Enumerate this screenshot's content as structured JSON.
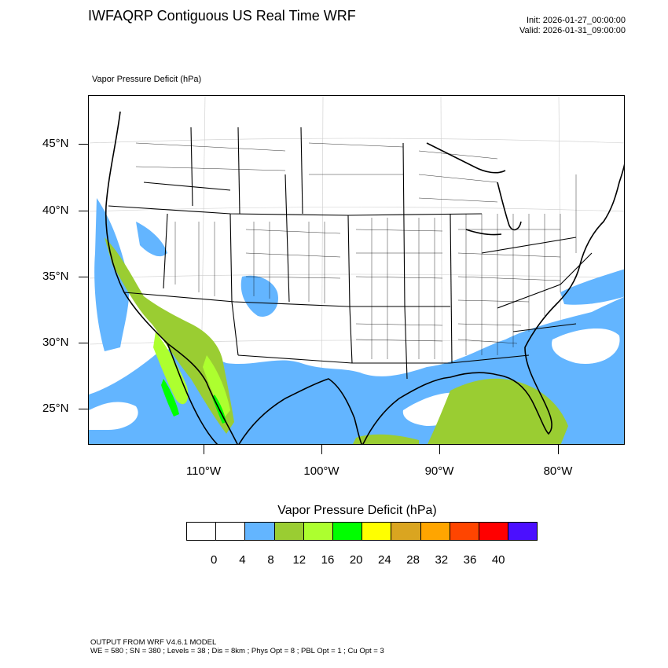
{
  "header": {
    "title": "IWFAQRP Contiguous US Real Time WRF",
    "init": "Init: 2026-01-27_00:00:00",
    "valid": "Valid: 2026-01-31_09:00:00"
  },
  "map": {
    "subtitle": "Vapor Pressure Deficit   (hPa)",
    "lat_labels": [
      "45°N",
      "40°N",
      "35°N",
      "30°N",
      "25°N"
    ],
    "lon_labels": [
      "110°W",
      "100°W",
      "90°W",
      "80°W"
    ]
  },
  "colorbar": {
    "title": "Vapor Pressure Deficit  (hPa)",
    "colors": [
      "#ffffff",
      "#ffffff",
      "#63b5ff",
      "#9acd32",
      "#adff2f",
      "#00ff00",
      "#ffff00",
      "#daa520",
      "#ffa500",
      "#ff4500",
      "#ff0000",
      "#4b0fff"
    ],
    "labels": [
      "0",
      "4",
      "8",
      "12",
      "16",
      "20",
      "24",
      "28",
      "32",
      "36",
      "40"
    ]
  },
  "footer": {
    "line1": "OUTPUT FROM WRF V4.6.1 MODEL",
    "line2": "WE = 580 ; SN = 380 ; Levels = 38 ; Dis = 8km ; Phys Opt = 8 ; PBL Opt = 1 ; Cu Opt = 3"
  }
}
